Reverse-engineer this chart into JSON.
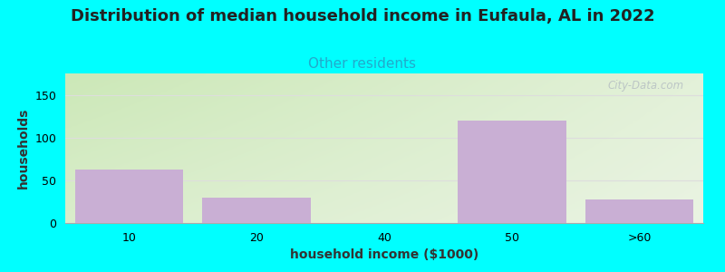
{
  "title": "Distribution of median household income in Eufaula, AL in 2022",
  "subtitle": "Other residents",
  "xlabel": "household income ($1000)",
  "ylabel": "households",
  "categories": [
    "10",
    "20",
    "40",
    "50",
    ">60"
  ],
  "values": [
    63,
    30,
    0,
    120,
    28
  ],
  "bar_color": "#c9afd4",
  "bar_positions": [
    0,
    1,
    2,
    3,
    4
  ],
  "bar_width": 0.85,
  "ylim": [
    0,
    175
  ],
  "yticks": [
    0,
    50,
    100,
    150
  ],
  "background_color": "#00ffff",
  "title_fontsize": 13,
  "subtitle_fontsize": 11,
  "subtitle_color": "#22aacc",
  "axis_label_fontsize": 10,
  "tick_fontsize": 9,
  "watermark": "City-Data.com",
  "grid_color": "#dddddd",
  "plot_bg_topleft": "#d0ecc0",
  "plot_bg_topright": "#e8f0e8",
  "plot_bg_botleft": "#e8f5e8",
  "plot_bg_botright": "#f8f8f8"
}
